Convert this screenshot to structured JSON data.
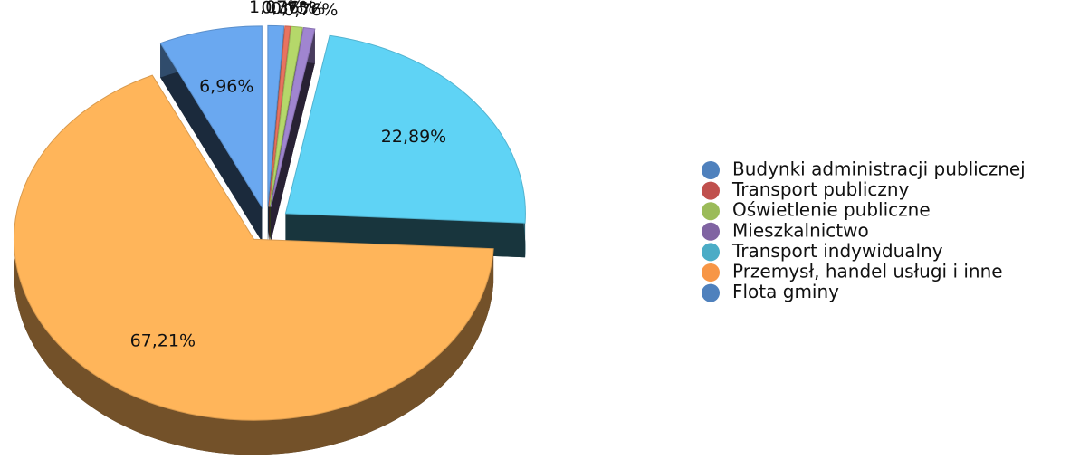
{
  "chart_data": {
    "type": "pie3d",
    "categories": [
      "Budynki administracji publicznej",
      "Transport publiczny",
      "Oświetlenie publiczne",
      "Mieszkalnictwo",
      "Transport indywidualny",
      "Przemysł, handel usługi i inne",
      "Flota gminy"
    ],
    "values": [
      1.07,
      0.36,
      0.75,
      0.76,
      22.89,
      67.21,
      6.96
    ],
    "value_labels": [
      "1,07%",
      "0,36%",
      "0,75%",
      "0,76%",
      "22,89%",
      "67,21%",
      "6,96%"
    ],
    "colors": [
      "#4f81bd",
      "#c0504d",
      "#9bbb59",
      "#8064a2",
      "#4bacc6",
      "#f79646",
      "#4f81bd"
    ],
    "slice_colors": [
      "#6aa8f0",
      "#e8735f",
      "#b5d86a",
      "#a085d0",
      "#5fd3f5",
      "#ffb55a",
      "#6aa8f0"
    ],
    "legend": "right"
  }
}
